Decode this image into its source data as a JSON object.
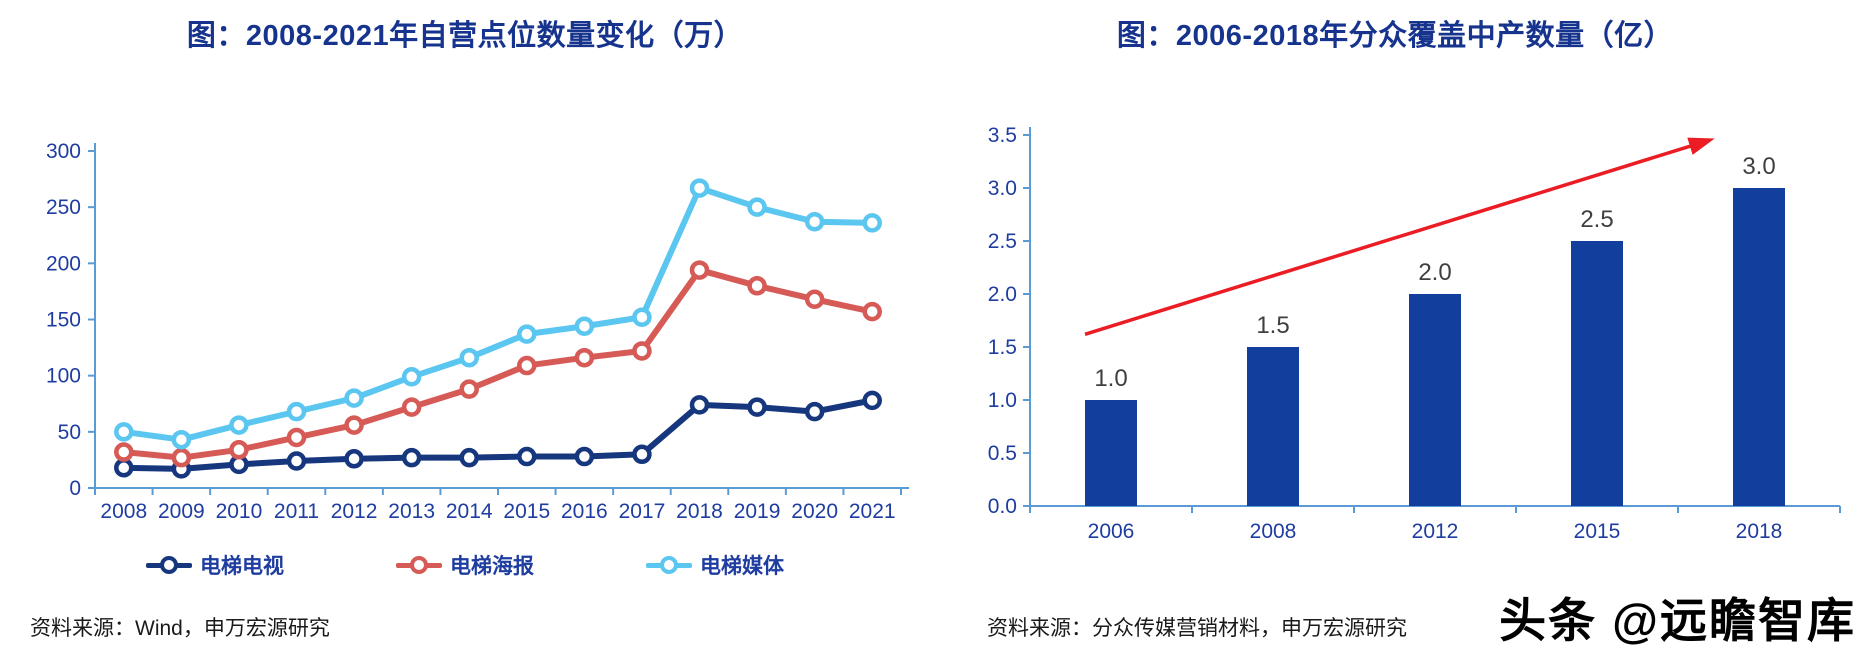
{
  "page": {
    "left_source": "资料来源：Wind，申万宏源研究",
    "right_source": "资料来源：分众传媒营销材料，申万宏源研究",
    "watermark": "头条 @远瞻智库"
  },
  "colors": {
    "title": "#16338E",
    "axis_label": "#1F3DA0",
    "axis_line": "#5B9BD5",
    "bar_label": "#3F3F3F",
    "source_text": "#1A1A1A",
    "watermark": "#000000"
  },
  "chart_data": [
    {
      "type": "line",
      "title": "图：2008-2021年自营点位数量变化（万）",
      "categories": [
        "2008",
        "2009",
        "2010",
        "2011",
        "2012",
        "2013",
        "2014",
        "2015",
        "2016",
        "2017",
        "2018",
        "2019",
        "2020",
        "2021"
      ],
      "series": [
        {
          "name": "电梯电视",
          "color": "#16377E",
          "values": [
            18,
            17,
            21,
            24,
            26,
            27,
            27,
            28,
            28,
            30,
            74,
            72,
            68,
            78
          ]
        },
        {
          "name": "电梯海报",
          "color": "#D65A55",
          "values": [
            32,
            27,
            34,
            45,
            56,
            72,
            88,
            109,
            116,
            122,
            194,
            180,
            168,
            157
          ]
        },
        {
          "name": "电梯媒体",
          "color": "#5BC6F0",
          "values": [
            50,
            43,
            56,
            68,
            80,
            99,
            116,
            137,
            144,
            152,
            267,
            250,
            237,
            236
          ]
        }
      ],
      "ylim": [
        0,
        300
      ],
      "ytick_step": 50,
      "ytick_decimals": 0,
      "grid": false,
      "legend_position": "bottom"
    },
    {
      "type": "bar",
      "title": "图：2006-2018年分众覆盖中产数量（亿）",
      "categories": [
        "2006",
        "2008",
        "2012",
        "2015",
        "2018"
      ],
      "values": [
        1.0,
        1.5,
        2.0,
        2.5,
        3.0
      ],
      "data_labels": [
        "1.0",
        "1.5",
        "2.0",
        "2.5",
        "3.0"
      ],
      "bar_color": "#123F9D",
      "ylim": [
        0,
        3.5
      ],
      "ytick_step": 0.5,
      "ytick_decimals": 1,
      "grid": false,
      "trend_arrow": {
        "color": "#EB1C24",
        "from": {
          "category_index": 0,
          "value": 1.62
        },
        "to": {
          "category_index": 4,
          "value": 3.45
        }
      }
    }
  ]
}
